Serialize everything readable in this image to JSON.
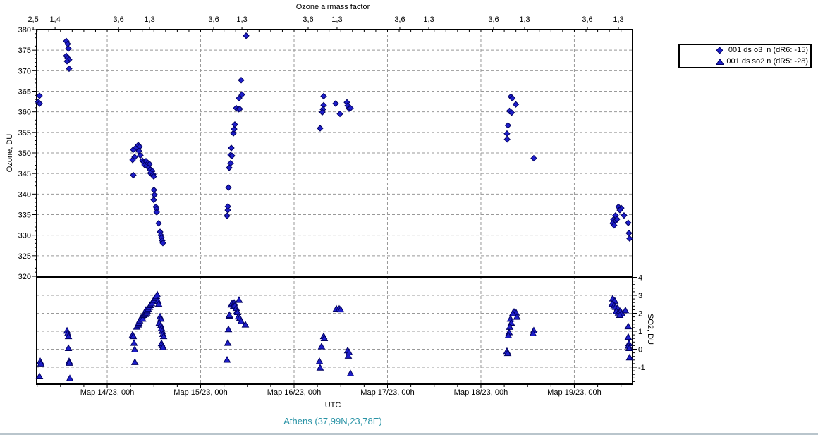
{
  "labels": {
    "top_axis_title": "Ozone airmass factor",
    "left_axis": "Ozone, DU",
    "right_axis": "SO2, DU",
    "xlabel": "UTC",
    "station": "Athens (37,99N,23,78E)"
  },
  "colors": {
    "marker_fill": "#1e1ecb",
    "marker_edge": "#000060",
    "grid": "#999999",
    "axis": "#000000",
    "station_text": "#2792a5",
    "window_edge": "#b9c5cc"
  },
  "chart_data": {
    "type": "scatter",
    "title": "Ozone airmass factor",
    "xlabel": "UTC",
    "ylabel_left": "Ozone, DU",
    "ylabel_right": "SO2, DU",
    "station": "Athens (37,99N,23,78E)",
    "x_units": "days since Mar 13/23 00h UTC",
    "x_range": [
      0.245,
      6.623
    ],
    "ozone_axis": {
      "min": 320,
      "max": 380,
      "major_step": 5,
      "minor_step": 1
    },
    "so2_axis": {
      "min": -1.94,
      "max": 4,
      "major_step": 1,
      "minor_step": 0.2
    },
    "grid": true,
    "legend_position": "top-right",
    "day_ticks": [
      {
        "t": 1,
        "label": "Мар 14/23, 00h"
      },
      {
        "t": 2,
        "label": "Мар 15/23, 00h"
      },
      {
        "t": 3,
        "label": "Мар 16/23, 00h"
      },
      {
        "t": 4,
        "label": "Мар 17/23, 00h"
      },
      {
        "t": 5,
        "label": "Мар 18/23, 00h"
      },
      {
        "t": 6,
        "label": "Мар 19/23, 00h"
      }
    ],
    "minor_tick_step_days": 0.25,
    "top_axis_ticks": [
      {
        "t": 0.208,
        "label": "2,5"
      },
      {
        "t": 0.442,
        "label": "1,4"
      },
      {
        "t": 1.121,
        "label": "3,6"
      },
      {
        "t": 1.453,
        "label": "1,3"
      },
      {
        "t": 2.14,
        "label": "3,6"
      },
      {
        "t": 2.442,
        "label": "1,3"
      },
      {
        "t": 3.151,
        "label": "3,6"
      },
      {
        "t": 3.46,
        "label": "1,3"
      },
      {
        "t": 4.132,
        "label": "3,6"
      },
      {
        "t": 4.442,
        "label": "1,3"
      },
      {
        "t": 5.136,
        "label": "3,6"
      },
      {
        "t": 5.468,
        "label": "1,3"
      },
      {
        "t": 6.14,
        "label": "3,6"
      },
      {
        "t": 6.472,
        "label": "1,3"
      }
    ],
    "series": [
      {
        "name": "001 ds o3  n (dR6: -15)",
        "marker": "diamond",
        "axis": "ozone",
        "points": [
          [
            0.275,
            363.9
          ],
          [
            0.262,
            362.4
          ],
          [
            0.277,
            362.0
          ],
          [
            0.562,
            377.2
          ],
          [
            0.577,
            376.5
          ],
          [
            0.585,
            375.4
          ],
          [
            0.562,
            373.6
          ],
          [
            0.577,
            373.1
          ],
          [
            0.592,
            372.7
          ],
          [
            0.57,
            372.3
          ],
          [
            0.592,
            370.5
          ],
          [
            1.279,
            350.8
          ],
          [
            1.309,
            351.3
          ],
          [
            1.332,
            351.9
          ],
          [
            1.347,
            351.5
          ],
          [
            1.339,
            350.5
          ],
          [
            1.294,
            349.0
          ],
          [
            1.272,
            348.3
          ],
          [
            1.355,
            349.4
          ],
          [
            1.377,
            348.1
          ],
          [
            1.392,
            347.8
          ],
          [
            1.415,
            348.0
          ],
          [
            1.4,
            347.1
          ],
          [
            1.423,
            346.9
          ],
          [
            1.438,
            347.5
          ],
          [
            1.453,
            347.3
          ],
          [
            1.445,
            346.4
          ],
          [
            1.46,
            345.9
          ],
          [
            1.483,
            345.6
          ],
          [
            1.462,
            345.1
          ],
          [
            1.491,
            344.8
          ],
          [
            1.279,
            344.6
          ],
          [
            1.498,
            344.3
          ],
          [
            1.5,
            341.0
          ],
          [
            1.506,
            339.8
          ],
          [
            1.498,
            338.6
          ],
          [
            1.521,
            336.9
          ],
          [
            1.528,
            336.4
          ],
          [
            1.53,
            335.6
          ],
          [
            1.551,
            332.9
          ],
          [
            1.566,
            330.8
          ],
          [
            1.574,
            330.0
          ],
          [
            1.581,
            329.4
          ],
          [
            1.589,
            328.7
          ],
          [
            1.596,
            328.1
          ],
          [
            2.283,
            334.7
          ],
          [
            2.291,
            336.1
          ],
          [
            2.292,
            337.0
          ],
          [
            2.298,
            341.6
          ],
          [
            2.306,
            346.4
          ],
          [
            2.321,
            347.5
          ],
          [
            2.321,
            349.5
          ],
          [
            2.336,
            349.3
          ],
          [
            2.328,
            351.2
          ],
          [
            2.351,
            354.8
          ],
          [
            2.359,
            355.8
          ],
          [
            2.366,
            356.9
          ],
          [
            2.381,
            360.9
          ],
          [
            2.404,
            360.6
          ],
          [
            2.419,
            360.7
          ],
          [
            2.411,
            363.3
          ],
          [
            2.442,
            364.2
          ],
          [
            2.434,
            367.7
          ],
          [
            2.487,
            378.5
          ],
          [
            3.279,
            356.0
          ],
          [
            3.317,
            363.8
          ],
          [
            3.317,
            361.6
          ],
          [
            3.309,
            360.6
          ],
          [
            3.302,
            359.9
          ],
          [
            3.445,
            362.0
          ],
          [
            3.491,
            359.5
          ],
          [
            3.566,
            362.3
          ],
          [
            3.574,
            361.5
          ],
          [
            3.589,
            360.8
          ],
          [
            3.604,
            360.9
          ],
          [
            5.321,
            363.7
          ],
          [
            5.336,
            363.3
          ],
          [
            5.374,
            361.8
          ],
          [
            5.306,
            360.2
          ],
          [
            5.329,
            359.8
          ],
          [
            5.29,
            356.7
          ],
          [
            5.279,
            354.7
          ],
          [
            5.281,
            353.3
          ],
          [
            5.566,
            348.7
          ],
          [
            6.472,
            336.9
          ],
          [
            6.502,
            336.6
          ],
          [
            6.487,
            336.1
          ],
          [
            6.441,
            334.8
          ],
          [
            6.419,
            333.8
          ],
          [
            6.443,
            333.5
          ],
          [
            6.457,
            333.9
          ],
          [
            6.411,
            332.9
          ],
          [
            6.426,
            332.4
          ],
          [
            6.532,
            334.8
          ],
          [
            6.577,
            333.0
          ],
          [
            6.585,
            330.5
          ],
          [
            6.592,
            329.2
          ]
        ]
      },
      {
        "name": "001 ds so2 n (dR5: -28)",
        "marker": "triangle",
        "axis": "so2",
        "points": [
          [
            0.283,
            -0.67
          ],
          [
            0.29,
            -0.8
          ],
          [
            0.275,
            -1.51
          ],
          [
            0.57,
            1.03
          ],
          [
            0.577,
            0.88
          ],
          [
            0.585,
            0.72
          ],
          [
            0.585,
            0.06
          ],
          [
            0.592,
            -0.67
          ],
          [
            0.594,
            -0.76
          ],
          [
            0.6,
            -1.62
          ],
          [
            1.272,
            0.81
          ],
          [
            1.279,
            0.72
          ],
          [
            1.287,
            0.35
          ],
          [
            1.294,
            -0.02
          ],
          [
            1.296,
            -0.72
          ],
          [
            1.317,
            1.25
          ],
          [
            1.332,
            1.37
          ],
          [
            1.339,
            1.47
          ],
          [
            1.347,
            1.6
          ],
          [
            1.362,
            1.73
          ],
          [
            1.377,
            1.82
          ],
          [
            1.379,
            1.69
          ],
          [
            1.392,
            1.9
          ],
          [
            1.407,
            1.95
          ],
          [
            1.423,
            2.03
          ],
          [
            1.43,
            2.12
          ],
          [
            1.415,
            2.19
          ],
          [
            1.438,
            2.25
          ],
          [
            1.453,
            2.35
          ],
          [
            1.46,
            2.45
          ],
          [
            1.475,
            2.55
          ],
          [
            1.491,
            2.65
          ],
          [
            1.498,
            2.74
          ],
          [
            1.513,
            2.85
          ],
          [
            1.528,
            2.95
          ],
          [
            1.536,
            3.04
          ],
          [
            1.543,
            2.69
          ],
          [
            1.551,
            2.52
          ],
          [
            1.566,
            1.82
          ],
          [
            1.574,
            1.69
          ],
          [
            1.558,
            1.47
          ],
          [
            1.574,
            1.33
          ],
          [
            1.581,
            1.17
          ],
          [
            1.589,
            1.01
          ],
          [
            1.596,
            0.85
          ],
          [
            1.604,
            0.72
          ],
          [
            1.581,
            0.33
          ],
          [
            1.589,
            0.22
          ],
          [
            1.596,
            0.11
          ],
          [
            2.283,
            -0.59
          ],
          [
            2.291,
            0.35
          ],
          [
            2.298,
            1.11
          ],
          [
            2.306,
            1.86
          ],
          [
            2.308,
            1.9
          ],
          [
            2.328,
            2.48
          ],
          [
            2.336,
            2.55
          ],
          [
            2.359,
            2.58
          ],
          [
            2.351,
            2.39
          ],
          [
            2.366,
            2.42
          ],
          [
            2.381,
            2.29
          ],
          [
            2.389,
            2.12
          ],
          [
            2.396,
            2.06
          ],
          [
            2.411,
            2.74
          ],
          [
            2.404,
            1.82
          ],
          [
            2.419,
            1.73
          ],
          [
            2.434,
            1.56
          ],
          [
            2.479,
            1.37
          ],
          [
            3.272,
            -0.67
          ],
          [
            3.279,
            -1.03
          ],
          [
            3.294,
            0.15
          ],
          [
            3.317,
            0.72
          ],
          [
            3.324,
            0.61
          ],
          [
            3.453,
            2.25
          ],
          [
            3.483,
            2.25
          ],
          [
            3.498,
            2.21
          ],
          [
            3.574,
            -0.07
          ],
          [
            3.581,
            -0.37
          ],
          [
            3.589,
            -0.17
          ],
          [
            3.604,
            -1.35
          ],
          [
            5.355,
            2.08
          ],
          [
            5.377,
            2.03
          ],
          [
            5.34,
            1.99
          ],
          [
            5.385,
            1.8
          ],
          [
            5.317,
            1.69
          ],
          [
            5.325,
            1.47
          ],
          [
            5.309,
            1.24
          ],
          [
            5.302,
            0.94
          ],
          [
            5.294,
            0.77
          ],
          [
            5.279,
            -0.11
          ],
          [
            5.287,
            -0.22
          ],
          [
            5.566,
            1.04
          ],
          [
            5.558,
            0.88
          ],
          [
            6.411,
            2.82
          ],
          [
            6.434,
            2.69
          ],
          [
            6.404,
            2.52
          ],
          [
            6.426,
            2.43
          ],
          [
            6.441,
            2.35
          ],
          [
            6.464,
            2.29
          ],
          [
            6.449,
            2.12
          ],
          [
            6.472,
            2.03
          ],
          [
            6.494,
            2.12
          ],
          [
            6.509,
            1.99
          ],
          [
            6.547,
            2.16
          ],
          [
            6.487,
            1.9
          ],
          [
            6.577,
            1.27
          ],
          [
            6.577,
            0.68
          ],
          [
            6.585,
            0.33
          ],
          [
            6.579,
            0.19
          ],
          [
            6.587,
            0.06
          ],
          [
            6.592,
            -0.46
          ]
        ]
      }
    ]
  }
}
